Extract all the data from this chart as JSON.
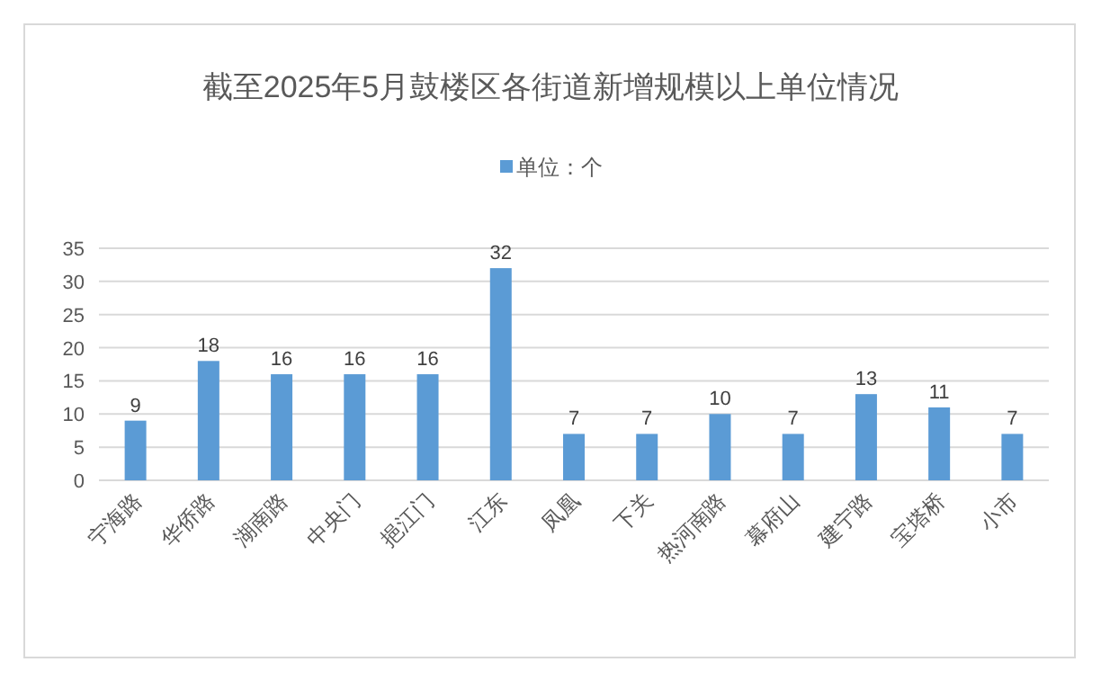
{
  "chart_data": {
    "type": "bar",
    "title": "截至2025年5月鼓楼区各街道新增规模以上单位情况",
    "categories": [
      "宁海路",
      "华侨路",
      "湖南路",
      "中央门",
      "挹江门",
      "江东",
      "凤凰",
      "下关",
      "热河南路",
      "幕府山",
      "建宁路",
      "宝塔桥",
      "小市"
    ],
    "series": [
      {
        "name": "单位：个",
        "color": "#5b9bd5",
        "values": [
          9,
          18,
          16,
          16,
          16,
          32,
          7,
          7,
          10,
          7,
          13,
          11,
          7
        ]
      }
    ],
    "ylim": [
      0,
      35
    ],
    "yticks": [
      0,
      5,
      10,
      15,
      20,
      25,
      30,
      35
    ],
    "grid": "y",
    "legend": "top",
    "data_labels": true
  }
}
